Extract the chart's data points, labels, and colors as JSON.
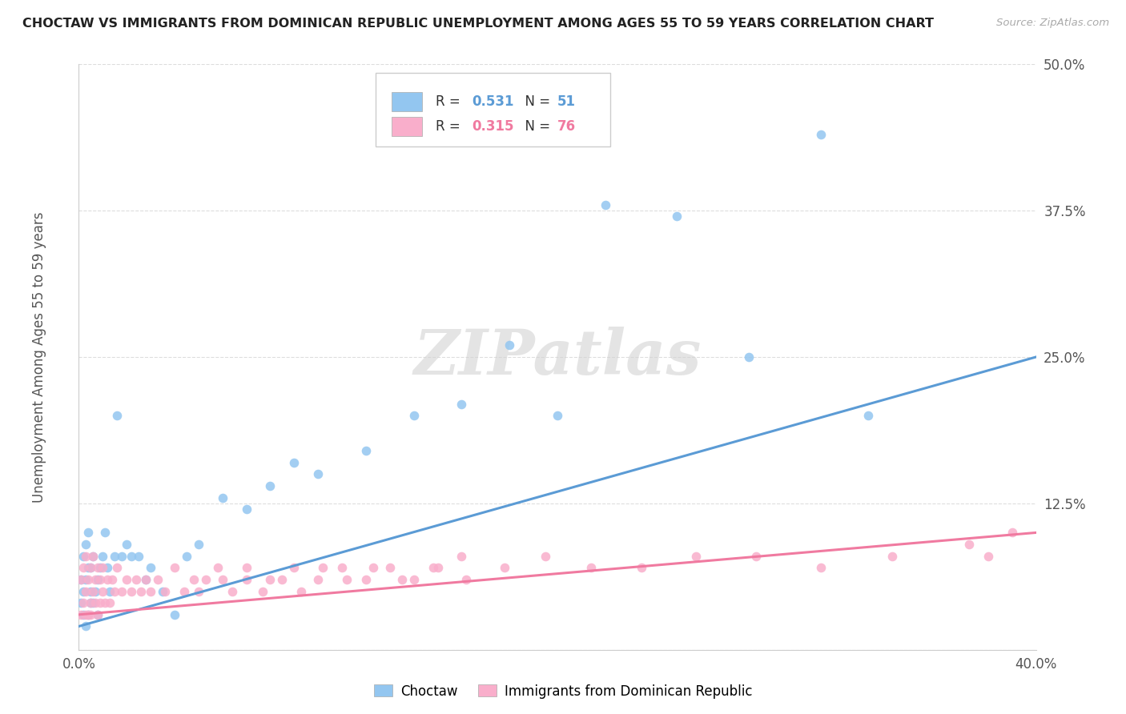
{
  "title": "CHOCTAW VS IMMIGRANTS FROM DOMINICAN REPUBLIC UNEMPLOYMENT AMONG AGES 55 TO 59 YEARS CORRELATION CHART",
  "source": "Source: ZipAtlas.com",
  "ylabel": "Unemployment Among Ages 55 to 59 years",
  "xlim": [
    0.0,
    0.4
  ],
  "ylim": [
    0.0,
    0.5
  ],
  "ytick_positions": [
    0.0,
    0.125,
    0.25,
    0.375,
    0.5
  ],
  "yticklabels": [
    "",
    "12.5%",
    "25.0%",
    "37.5%",
    "50.0%"
  ],
  "xtick_positions": [
    0.0,
    0.1,
    0.2,
    0.3,
    0.4
  ],
  "xticklabels": [
    "0.0%",
    "",
    "",
    "",
    "40.0%"
  ],
  "blue_R": 0.531,
  "blue_N": 51,
  "pink_R": 0.315,
  "pink_N": 76,
  "blue_color": "#93C6F0",
  "pink_color": "#F9AECB",
  "blue_line_color": "#5B9BD5",
  "pink_line_color": "#F07AA0",
  "legend_label_blue": "Choctaw",
  "legend_label_pink": "Immigrants from Dominican Republic",
  "watermark": "ZIPatlas",
  "blue_scatter_x": [
    0.001,
    0.001,
    0.002,
    0.002,
    0.002,
    0.003,
    0.003,
    0.003,
    0.004,
    0.004,
    0.004,
    0.005,
    0.005,
    0.005,
    0.006,
    0.006,
    0.007,
    0.008,
    0.008,
    0.009,
    0.01,
    0.011,
    0.012,
    0.013,
    0.015,
    0.016,
    0.018,
    0.02,
    0.022,
    0.025,
    0.028,
    0.03,
    0.035,
    0.04,
    0.045,
    0.05,
    0.06,
    0.07,
    0.08,
    0.09,
    0.1,
    0.12,
    0.14,
    0.16,
    0.18,
    0.2,
    0.22,
    0.25,
    0.28,
    0.31,
    0.33
  ],
  "blue_scatter_y": [
    0.04,
    0.06,
    0.03,
    0.05,
    0.08,
    0.02,
    0.06,
    0.09,
    0.03,
    0.07,
    0.1,
    0.04,
    0.07,
    0.05,
    0.04,
    0.08,
    0.05,
    0.06,
    0.03,
    0.07,
    0.08,
    0.1,
    0.07,
    0.05,
    0.08,
    0.2,
    0.08,
    0.09,
    0.08,
    0.08,
    0.06,
    0.07,
    0.05,
    0.03,
    0.08,
    0.09,
    0.13,
    0.12,
    0.14,
    0.16,
    0.15,
    0.17,
    0.2,
    0.21,
    0.26,
    0.2,
    0.38,
    0.37,
    0.25,
    0.44,
    0.2
  ],
  "pink_scatter_x": [
    0.001,
    0.001,
    0.002,
    0.002,
    0.003,
    0.003,
    0.003,
    0.004,
    0.004,
    0.005,
    0.005,
    0.005,
    0.006,
    0.006,
    0.007,
    0.007,
    0.008,
    0.008,
    0.009,
    0.009,
    0.01,
    0.01,
    0.011,
    0.012,
    0.013,
    0.014,
    0.015,
    0.016,
    0.018,
    0.02,
    0.022,
    0.024,
    0.026,
    0.028,
    0.03,
    0.033,
    0.036,
    0.04,
    0.044,
    0.048,
    0.053,
    0.058,
    0.064,
    0.07,
    0.077,
    0.085,
    0.093,
    0.102,
    0.112,
    0.123,
    0.135,
    0.148,
    0.162,
    0.178,
    0.195,
    0.214,
    0.235,
    0.258,
    0.283,
    0.31,
    0.34,
    0.372,
    0.38,
    0.39,
    0.05,
    0.06,
    0.07,
    0.08,
    0.09,
    0.1,
    0.11,
    0.12,
    0.13,
    0.14,
    0.15,
    0.16
  ],
  "pink_scatter_y": [
    0.03,
    0.06,
    0.04,
    0.07,
    0.03,
    0.05,
    0.08,
    0.03,
    0.06,
    0.04,
    0.07,
    0.03,
    0.05,
    0.08,
    0.04,
    0.06,
    0.03,
    0.07,
    0.04,
    0.06,
    0.05,
    0.07,
    0.04,
    0.06,
    0.04,
    0.06,
    0.05,
    0.07,
    0.05,
    0.06,
    0.05,
    0.06,
    0.05,
    0.06,
    0.05,
    0.06,
    0.05,
    0.07,
    0.05,
    0.06,
    0.06,
    0.07,
    0.05,
    0.06,
    0.05,
    0.06,
    0.05,
    0.07,
    0.06,
    0.07,
    0.06,
    0.07,
    0.06,
    0.07,
    0.08,
    0.07,
    0.07,
    0.08,
    0.08,
    0.07,
    0.08,
    0.09,
    0.08,
    0.1,
    0.05,
    0.06,
    0.07,
    0.06,
    0.07,
    0.06,
    0.07,
    0.06,
    0.07,
    0.06,
    0.07,
    0.08
  ]
}
